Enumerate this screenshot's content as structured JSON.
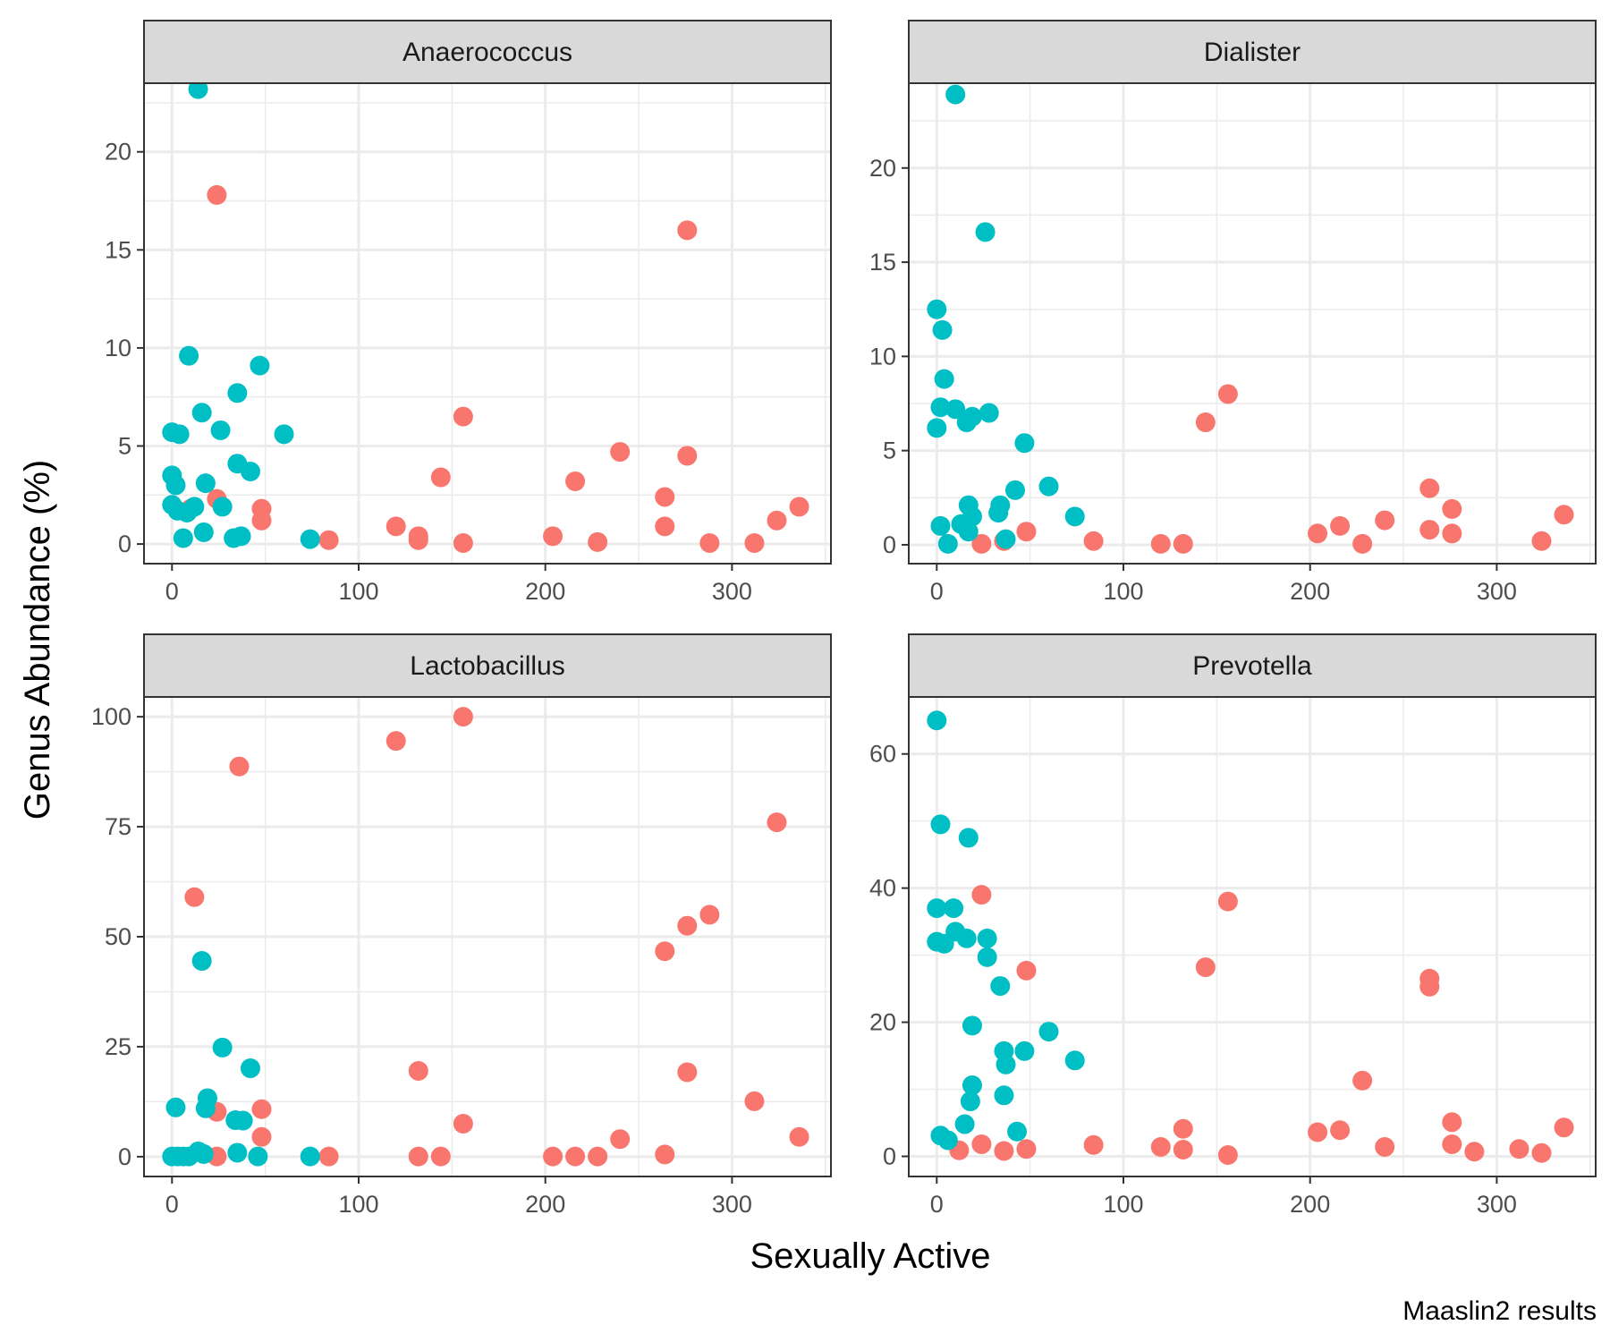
{
  "figure": {
    "xlabel": "Sexually Active",
    "ylabel": "Genus Abundance (%)",
    "caption": "Maaslin2 results"
  },
  "colors": {
    "group_a": "#F8766D",
    "group_b": "#00BFC4",
    "strip_fill": "#D9D9D9",
    "grid": "#EBEBEB",
    "border": "#333333"
  },
  "chart_data": [
    {
      "type": "scatter",
      "title": "Anaerococcus",
      "xlim": [
        -15,
        353
      ],
      "ylim": [
        -1.0,
        23.5
      ],
      "xticks": [
        0,
        100,
        200,
        300
      ],
      "yticks": [
        0,
        5,
        10,
        15,
        20
      ],
      "grid": true,
      "series": [
        {
          "color": "group_a",
          "points": [
            [
              10,
              1.8
            ],
            [
              24,
              17.8
            ],
            [
              24,
              2.3
            ],
            [
              48,
              1.8
            ],
            [
              48,
              1.2
            ],
            [
              84,
              0.2
            ],
            [
              120,
              0.9
            ],
            [
              132,
              0.4
            ],
            [
              132,
              0.2
            ],
            [
              144,
              3.4
            ],
            [
              156,
              6.5
            ],
            [
              156,
              0.05
            ],
            [
              204,
              0.4
            ],
            [
              216,
              3.2
            ],
            [
              228,
              0.1
            ],
            [
              240,
              4.7
            ],
            [
              264,
              2.4
            ],
            [
              264,
              0.9
            ],
            [
              276,
              16.0
            ],
            [
              276,
              4.5
            ],
            [
              288,
              0.05
            ],
            [
              312,
              0.05
            ],
            [
              324,
              1.2
            ],
            [
              336,
              1.9
            ]
          ]
        },
        {
          "color": "group_b",
          "points": [
            [
              14,
              23.2
            ],
            [
              9,
              9.6
            ],
            [
              47,
              9.1
            ],
            [
              35,
              7.7
            ],
            [
              16,
              6.7
            ],
            [
              26,
              5.8
            ],
            [
              60,
              5.6
            ],
            [
              0,
              5.7
            ],
            [
              4,
              5.6
            ],
            [
              35,
              4.1
            ],
            [
              42,
              3.7
            ],
            [
              0,
              3.5
            ],
            [
              2,
              3.0
            ],
            [
              18,
              3.1
            ],
            [
              27,
              1.9
            ],
            [
              0,
              2.0
            ],
            [
              3,
              1.7
            ],
            [
              8,
              1.6
            ],
            [
              12,
              1.9
            ],
            [
              17,
              0.6
            ],
            [
              33,
              0.3
            ],
            [
              37,
              0.4
            ],
            [
              6,
              0.3
            ],
            [
              74,
              0.25
            ]
          ]
        }
      ]
    },
    {
      "type": "scatter",
      "title": "Dialister",
      "xlim": [
        -15,
        353
      ],
      "ylim": [
        -1.0,
        24.5
      ],
      "xticks": [
        0,
        100,
        200,
        300
      ],
      "yticks": [
        0,
        5,
        10,
        15,
        20
      ],
      "grid": true,
      "series": [
        {
          "color": "group_a",
          "points": [
            [
              156,
              8.0
            ],
            [
              144,
              6.5
            ],
            [
              48,
              0.7
            ],
            [
              36,
              0.2
            ],
            [
              24,
              0.05
            ],
            [
              84,
              0.2
            ],
            [
              120,
              0.05
            ],
            [
              132,
              0.05
            ],
            [
              204,
              0.6
            ],
            [
              216,
              1.0
            ],
            [
              228,
              0.05
            ],
            [
              240,
              1.3
            ],
            [
              264,
              3.0
            ],
            [
              264,
              0.8
            ],
            [
              276,
              1.9
            ],
            [
              276,
              0.6
            ],
            [
              324,
              0.2
            ],
            [
              336,
              1.6
            ]
          ]
        },
        {
          "color": "group_b",
          "points": [
            [
              10,
              23.9
            ],
            [
              26,
              16.6
            ],
            [
              0,
              12.5
            ],
            [
              3,
              11.4
            ],
            [
              4,
              8.8
            ],
            [
              2,
              7.3
            ],
            [
              10,
              7.2
            ],
            [
              19,
              6.8
            ],
            [
              28,
              7.0
            ],
            [
              16,
              6.5
            ],
            [
              0,
              6.2
            ],
            [
              47,
              5.4
            ],
            [
              60,
              3.1
            ],
            [
              42,
              2.9
            ],
            [
              17,
              2.1
            ],
            [
              34,
              2.1
            ],
            [
              19,
              1.5
            ],
            [
              33,
              1.7
            ],
            [
              74,
              1.5
            ],
            [
              2,
              1.0
            ],
            [
              13,
              1.1
            ],
            [
              6,
              0.05
            ],
            [
              37,
              0.3
            ],
            [
              17,
              0.7
            ]
          ]
        }
      ]
    },
    {
      "type": "scatter",
      "title": "Lactobacillus",
      "xlim": [
        -15,
        353
      ],
      "ylim": [
        -4.5,
        104.5
      ],
      "xticks": [
        0,
        100,
        200,
        300
      ],
      "yticks": [
        0,
        25,
        50,
        75,
        100
      ],
      "grid": true,
      "series": [
        {
          "color": "group_a",
          "points": [
            [
              156,
              100
            ],
            [
              120,
              94.5
            ],
            [
              36,
              88.7
            ],
            [
              324,
              76
            ],
            [
              12,
              59
            ],
            [
              288,
              55
            ],
            [
              276,
              52.5
            ],
            [
              264,
              46.7
            ],
            [
              132,
              19.5
            ],
            [
              276,
              19.2
            ],
            [
              312,
              12.6
            ],
            [
              48,
              10.8
            ],
            [
              24,
              10.2
            ],
            [
              156,
              7.5
            ],
            [
              48,
              4.5
            ],
            [
              336,
              4.5
            ],
            [
              240,
              4.0
            ],
            [
              24,
              0.05
            ],
            [
              84,
              0.05
            ],
            [
              132,
              0.05
            ],
            [
              144,
              0.05
            ],
            [
              204,
              0.05
            ],
            [
              216,
              0.05
            ],
            [
              228,
              0.05
            ],
            [
              264,
              0.5
            ]
          ]
        },
        {
          "color": "group_b",
          "points": [
            [
              16,
              44.5
            ],
            [
              27,
              24.8
            ],
            [
              42,
              20.1
            ],
            [
              19,
              13.3
            ],
            [
              2,
              11.2
            ],
            [
              18,
              11.0
            ],
            [
              34,
              8.3
            ],
            [
              38,
              8.2
            ],
            [
              0,
              0.05
            ],
            [
              3,
              0.05
            ],
            [
              6,
              0.05
            ],
            [
              9,
              0.05
            ],
            [
              14,
              1.2
            ],
            [
              17,
              0.6
            ],
            [
              35,
              0.9
            ],
            [
              46,
              0.05
            ],
            [
              74,
              0.05
            ]
          ]
        }
      ]
    },
    {
      "type": "scatter",
      "title": "Prevotella",
      "xlim": [
        -15,
        353
      ],
      "ylim": [
        -3.0,
        68.5
      ],
      "xticks": [
        0,
        100,
        200,
        300
      ],
      "yticks": [
        0,
        20,
        40,
        60
      ],
      "grid": true,
      "series": [
        {
          "color": "group_a",
          "points": [
            [
              24,
              39
            ],
            [
              156,
              38
            ],
            [
              144,
              28.2
            ],
            [
              48,
              27.7
            ],
            [
              264,
              26.5
            ],
            [
              264,
              25.3
            ],
            [
              228,
              11.3
            ],
            [
              276,
              5.1
            ],
            [
              132,
              4.1
            ],
            [
              216,
              3.9
            ],
            [
              204,
              3.6
            ],
            [
              24,
              1.8
            ],
            [
              84,
              1.7
            ],
            [
              120,
              1.4
            ],
            [
              240,
              1.4
            ],
            [
              276,
              1.8
            ],
            [
              12,
              0.9
            ],
            [
              36,
              0.8
            ],
            [
              48,
              1.1
            ],
            [
              132,
              1.0
            ],
            [
              156,
              0.2
            ],
            [
              288,
              0.7
            ],
            [
              312,
              1.1
            ],
            [
              324,
              0.5
            ],
            [
              336,
              4.3
            ]
          ]
        },
        {
          "color": "group_b",
          "points": [
            [
              0,
              65
            ],
            [
              2,
              49.5
            ],
            [
              17,
              47.5
            ],
            [
              0,
              37
            ],
            [
              9,
              37
            ],
            [
              0,
              32
            ],
            [
              4,
              31.7
            ],
            [
              10,
              33.5
            ],
            [
              16,
              32.5
            ],
            [
              27,
              32.5
            ],
            [
              27,
              29.7
            ],
            [
              34,
              25.4
            ],
            [
              19,
              19.5
            ],
            [
              60,
              18.6
            ],
            [
              36,
              15.7
            ],
            [
              47,
              15.7
            ],
            [
              74,
              14.3
            ],
            [
              37,
              13.7
            ],
            [
              19,
              10.6
            ],
            [
              36,
              9.1
            ],
            [
              18,
              8.2
            ],
            [
              15,
              4.8
            ],
            [
              43,
              3.7
            ],
            [
              2,
              3.1
            ],
            [
              6,
              2.4
            ]
          ]
        }
      ]
    }
  ]
}
